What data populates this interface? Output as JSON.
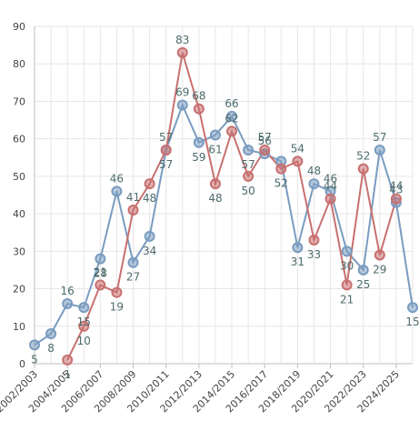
{
  "chart_data": {
    "type": "line",
    "x": [
      "2002/2003",
      "2003/2004",
      "2004/2005",
      "2005/2006",
      "2006/2007",
      "2007/2008",
      "2008/2009",
      "2009/2010",
      "2010/2011",
      "2011/2012",
      "2012/2013",
      "2013/2014",
      "2014/2015",
      "2015/2016",
      "2016/2017",
      "2017/2018",
      "2018/2019",
      "2019/2020",
      "2020/2021",
      "2021/2022",
      "2022/2023",
      "2023/2024",
      "2024/2025",
      "2025/2026"
    ],
    "xtick_labels": [
      "2002/2003",
      "2004/2005",
      "2006/2007",
      "2008/2009",
      "2010/2011",
      "2012/2013",
      "2014/2015",
      "2016/2017",
      "2018/2019",
      "2020/2021",
      "2022/2023",
      "2024/2025"
    ],
    "ylim": [
      0,
      90
    ],
    "yticks": [
      0,
      10,
      20,
      30,
      40,
      50,
      60,
      70,
      80,
      90
    ],
    "grid": true,
    "title": "",
    "xlabel": "",
    "ylabel": "",
    "series": [
      {
        "color": "#7a9cc0",
        "values": [
          5,
          8,
          16,
          15,
          28,
          46,
          27,
          34,
          57,
          69,
          59,
          61,
          66,
          57,
          56,
          54,
          31,
          48,
          46,
          30,
          25,
          57,
          43,
          15
        ],
        "labels": [
          "5",
          "8",
          "16",
          "15",
          "28",
          "46",
          "27",
          "34",
          "57",
          "69",
          "59",
          "61",
          "66",
          "57",
          "56",
          "",
          "31",
          "48",
          "46",
          "30",
          "25",
          "57",
          "43",
          "15"
        ]
      },
      {
        "color": "#c87070",
        "values": [
          null,
          null,
          1,
          10,
          21,
          19,
          41,
          48,
          57,
          83,
          68,
          48,
          62,
          50,
          57,
          52,
          54,
          33,
          44,
          21,
          52,
          29,
          44,
          null
        ],
        "labels": [
          "",
          "",
          "1",
          "10",
          "21",
          "19",
          "41",
          "48",
          "57",
          "83",
          "68",
          "48",
          "62",
          "50",
          "57",
          "52",
          "54",
          "33",
          "44",
          "21",
          "52",
          "29",
          "44",
          ""
        ]
      }
    ]
  }
}
